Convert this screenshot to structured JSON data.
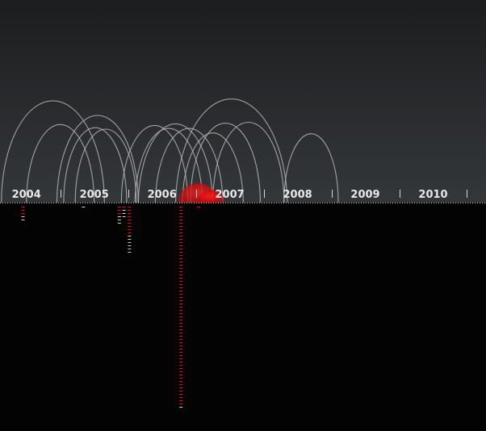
{
  "colors": {
    "sky_top": "#1c1d1f",
    "sky_bottom": "#34373a",
    "ground": "#030303",
    "arc": "#b5b5b5",
    "tick": "#d8d8d8",
    "accent": "#e41010",
    "label": "#e8e8e8"
  },
  "chart_data": {
    "type": "timeline-arcs",
    "title": "",
    "xlim": [
      2003.61,
      2010.78
    ],
    "years": [
      2004,
      2005,
      2006,
      2007,
      2008,
      2009,
      2010
    ],
    "tick_positions": [
      2004.5,
      2005.5,
      2006.5,
      2007.5,
      2008.5,
      2009.5,
      2010.5
    ],
    "year_labels": [
      "2004",
      "2005",
      "2006",
      "2007",
      "2008",
      "2009",
      "2010"
    ],
    "arcs": [
      {
        "from": 2003.63,
        "to": 2005.15
      },
      {
        "from": 2004.45,
        "to": 2005.65
      },
      {
        "from": 2004.55,
        "to": 2005.48
      },
      {
        "from": 2004.72,
        "to": 2005.62
      },
      {
        "from": 2004.0,
        "to": 2005.0
      },
      {
        "from": 2005.4,
        "to": 2006.38
      },
      {
        "from": 2005.6,
        "to": 2006.6
      },
      {
        "from": 2005.65,
        "to": 2006.75
      },
      {
        "from": 2005.9,
        "to": 2006.9
      },
      {
        "from": 2006.75,
        "to": 2007.8
      },
      {
        "from": 2006.3,
        "to": 2007.2
      },
      {
        "from": 2006.42,
        "to": 2007.45
      },
      {
        "from": 2006.2,
        "to": 2007.85
      },
      {
        "from": 2007.8,
        "to": 2008.6
      }
    ],
    "bubbles": [
      {
        "x": 2006.53,
        "size": 3
      },
      {
        "x": 2006.72,
        "size": 2
      }
    ],
    "stacks": [
      {
        "x": 2003.95,
        "red": 3,
        "white": 2
      },
      {
        "x": 2004.84,
        "red": 0,
        "white": 1
      },
      {
        "x": 2005.37,
        "red": 3,
        "white": 3
      },
      {
        "x": 2005.44,
        "red": 1,
        "white": 3
      },
      {
        "x": 2005.52,
        "red": 9,
        "white": 6
      },
      {
        "x": 2006.28,
        "red": 62,
        "white": 1
      },
      {
        "x": 2006.54,
        "red": 1,
        "white": 0
      }
    ]
  }
}
